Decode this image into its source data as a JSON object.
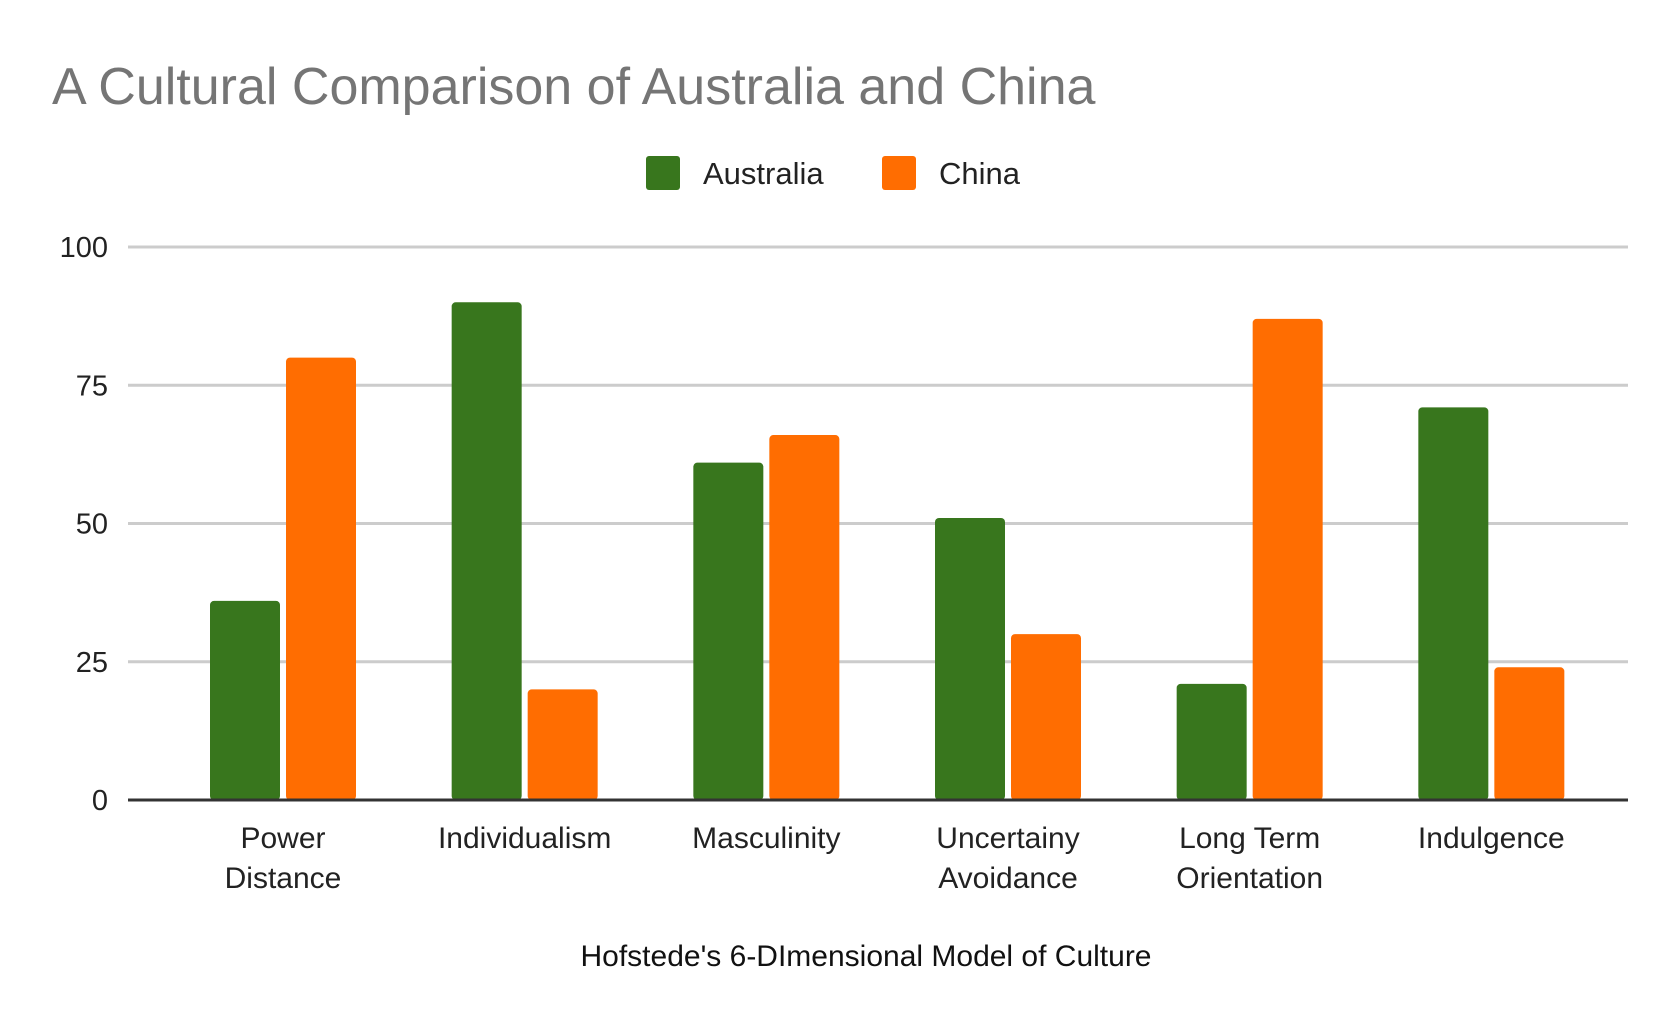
{
  "chart_data": {
    "type": "bar",
    "title": "A Cultural Comparison of Australia and China",
    "xlabel": "Hofstede's 6-DImensional Model of Culture",
    "ylabel": "",
    "ylim": [
      0,
      100
    ],
    "yticks": [
      "0",
      "25",
      "50",
      "75",
      "100"
    ],
    "grid": true,
    "legend_position": "top",
    "categories": [
      [
        "Power",
        "Distance"
      ],
      [
        "Individualism"
      ],
      [
        "Masculinity"
      ],
      [
        "Uncertainy",
        "Avoidance"
      ],
      [
        "Long Term",
        "Orientation"
      ],
      [
        "Indulgence"
      ]
    ],
    "series": [
      {
        "name": "Australia",
        "color": "#38761d",
        "values": [
          36,
          90,
          61,
          51,
          21,
          71
        ]
      },
      {
        "name": "China",
        "color": "#ff6d01",
        "values": [
          80,
          20,
          66,
          30,
          87,
          24
        ]
      }
    ]
  }
}
